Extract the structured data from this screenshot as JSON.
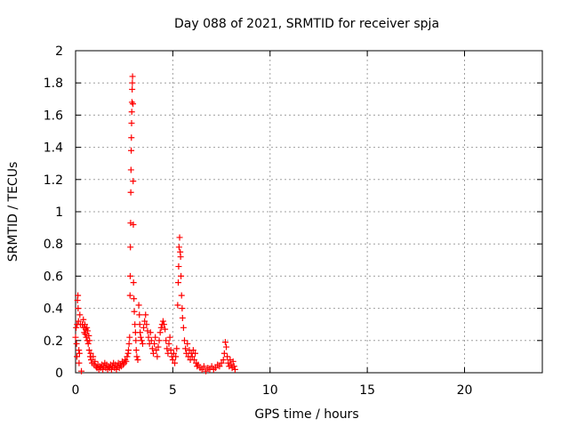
{
  "chart_data": {
    "type": "scatter",
    "title": "Day 088 of 2021, SRMTID for receiver spja",
    "xlabel": "GPS time / hours",
    "ylabel": "SRMTID / TECUs",
    "xlim": [
      0,
      24
    ],
    "ylim": [
      0,
      2
    ],
    "xticks": [
      0,
      5,
      10,
      15,
      20
    ],
    "xtick_labels": [
      "0",
      "5",
      "10",
      "15",
      "20"
    ],
    "yticks": [
      0,
      0.2,
      0.4,
      0.6,
      0.8,
      1,
      1.2,
      1.4,
      1.6,
      1.8,
      2
    ],
    "ytick_labels": [
      "0",
      "0.2",
      "0.4",
      "0.6",
      "0.8",
      "1",
      "1.2",
      "1.4",
      "1.6",
      "1.8",
      "2"
    ],
    "grid": true,
    "marker": "+",
    "colors": {
      "series": "#ff0000",
      "axes": "#000000",
      "grid": "#a0a0a0"
    },
    "series": [
      {
        "points": [
          [
            0.0,
            0.22
          ],
          [
            0.03,
            0.28
          ],
          [
            0.05,
            0.18
          ],
          [
            0.07,
            0.1
          ],
          [
            0.08,
            0.3
          ],
          [
            0.1,
            0.45
          ],
          [
            0.12,
            0.48
          ],
          [
            0.13,
            0.4
          ],
          [
            0.15,
            0.32
          ],
          [
            0.17,
            0.14
          ],
          [
            0.18,
            0.06
          ],
          [
            0.2,
            0.12
          ],
          [
            0.22,
            0.36
          ],
          [
            0.25,
            0.3
          ],
          [
            0.3,
            0.01
          ],
          [
            0.35,
            0.3
          ],
          [
            0.4,
            0.33
          ],
          [
            0.42,
            0.28
          ],
          [
            0.45,
            0.25
          ],
          [
            0.48,
            0.3
          ],
          [
            0.5,
            0.24
          ],
          [
            0.52,
            0.27
          ],
          [
            0.55,
            0.22
          ],
          [
            0.58,
            0.28
          ],
          [
            0.6,
            0.2
          ],
          [
            0.62,
            0.26
          ],
          [
            0.65,
            0.18
          ],
          [
            0.68,
            0.23
          ],
          [
            0.7,
            0.14
          ],
          [
            0.72,
            0.2
          ],
          [
            0.75,
            0.1
          ],
          [
            0.78,
            0.12
          ],
          [
            0.8,
            0.08
          ],
          [
            0.85,
            0.06
          ],
          [
            0.9,
            0.1
          ],
          [
            0.95,
            0.05
          ],
          [
            1.0,
            0.07
          ],
          [
            1.05,
            0.04
          ],
          [
            1.1,
            0.03
          ],
          [
            1.15,
            0.05
          ],
          [
            1.2,
            0.02
          ],
          [
            1.25,
            0.04
          ],
          [
            1.3,
            0.03
          ],
          [
            1.35,
            0.05
          ],
          [
            1.4,
            0.02
          ],
          [
            1.45,
            0.04
          ],
          [
            1.5,
            0.06
          ],
          [
            1.55,
            0.03
          ],
          [
            1.6,
            0.05
          ],
          [
            1.65,
            0.02
          ],
          [
            1.7,
            0.04
          ],
          [
            1.75,
            0.03
          ],
          [
            1.8,
            0.05
          ],
          [
            1.85,
            0.02
          ],
          [
            1.9,
            0.04
          ],
          [
            1.95,
            0.06
          ],
          [
            2.0,
            0.03
          ],
          [
            2.05,
            0.05
          ],
          [
            2.1,
            0.02
          ],
          [
            2.15,
            0.04
          ],
          [
            2.2,
            0.06
          ],
          [
            2.25,
            0.03
          ],
          [
            2.3,
            0.05
          ],
          [
            2.35,
            0.04
          ],
          [
            2.4,
            0.07
          ],
          [
            2.45,
            0.05
          ],
          [
            2.5,
            0.06
          ],
          [
            2.55,
            0.08
          ],
          [
            2.6,
            0.07
          ],
          [
            2.65,
            0.1
          ],
          [
            2.7,
            0.12
          ],
          [
            2.72,
            0.14
          ],
          [
            2.75,
            0.18
          ],
          [
            2.78,
            0.22
          ],
          [
            2.8,
            0.48
          ],
          [
            2.81,
            0.6
          ],
          [
            2.82,
            0.78
          ],
          [
            2.83,
            0.93
          ],
          [
            2.84,
            1.12
          ],
          [
            2.85,
            1.26
          ],
          [
            2.86,
            1.38
          ],
          [
            2.87,
            1.46
          ],
          [
            2.88,
            1.55
          ],
          [
            2.89,
            1.62
          ],
          [
            2.9,
            1.68
          ],
          [
            2.91,
            1.76
          ],
          [
            2.92,
            1.8
          ],
          [
            2.93,
            1.84
          ],
          [
            2.95,
            1.67
          ],
          [
            2.96,
            1.19
          ],
          [
            2.97,
            0.92
          ],
          [
            2.98,
            0.56
          ],
          [
            3.0,
            0.46
          ],
          [
            3.02,
            0.38
          ],
          [
            3.05,
            0.3
          ],
          [
            3.08,
            0.25
          ],
          [
            3.1,
            0.2
          ],
          [
            3.12,
            0.14
          ],
          [
            3.15,
            0.1
          ],
          [
            3.2,
            0.08
          ],
          [
            3.25,
            0.42
          ],
          [
            3.28,
            0.36
          ],
          [
            3.3,
            0.3
          ],
          [
            3.32,
            0.25
          ],
          [
            3.35,
            0.22
          ],
          [
            3.4,
            0.2
          ],
          [
            3.45,
            0.18
          ],
          [
            3.5,
            0.28
          ],
          [
            3.55,
            0.32
          ],
          [
            3.6,
            0.36
          ],
          [
            3.65,
            0.3
          ],
          [
            3.7,
            0.26
          ],
          [
            3.75,
            0.22
          ],
          [
            3.8,
            0.18
          ],
          [
            3.85,
            0.25
          ],
          [
            3.9,
            0.2
          ],
          [
            3.95,
            0.15
          ],
          [
            4.0,
            0.12
          ],
          [
            4.05,
            0.18
          ],
          [
            4.1,
            0.22
          ],
          [
            4.15,
            0.14
          ],
          [
            4.2,
            0.1
          ],
          [
            4.25,
            0.16
          ],
          [
            4.3,
            0.2
          ],
          [
            4.35,
            0.25
          ],
          [
            4.4,
            0.28
          ],
          [
            4.45,
            0.3
          ],
          [
            4.5,
            0.32
          ],
          [
            4.55,
            0.3
          ],
          [
            4.6,
            0.27
          ],
          [
            4.65,
            0.2
          ],
          [
            4.7,
            0.15
          ],
          [
            4.75,
            0.12
          ],
          [
            4.8,
            0.18
          ],
          [
            4.85,
            0.22
          ],
          [
            4.9,
            0.14
          ],
          [
            4.95,
            0.1
          ],
          [
            5.0,
            0.08
          ],
          [
            5.05,
            0.12
          ],
          [
            5.1,
            0.06
          ],
          [
            5.15,
            0.1
          ],
          [
            5.2,
            0.15
          ],
          [
            5.25,
            0.42
          ],
          [
            5.28,
            0.56
          ],
          [
            5.3,
            0.66
          ],
          [
            5.32,
            0.78
          ],
          [
            5.35,
            0.84
          ],
          [
            5.38,
            0.75
          ],
          [
            5.4,
            0.72
          ],
          [
            5.42,
            0.6
          ],
          [
            5.45,
            0.48
          ],
          [
            5.48,
            0.4
          ],
          [
            5.5,
            0.34
          ],
          [
            5.55,
            0.28
          ],
          [
            5.6,
            0.2
          ],
          [
            5.65,
            0.15
          ],
          [
            5.7,
            0.12
          ],
          [
            5.75,
            0.18
          ],
          [
            5.8,
            0.1
          ],
          [
            5.85,
            0.14
          ],
          [
            5.9,
            0.08
          ],
          [
            5.95,
            0.12
          ],
          [
            6.0,
            0.1
          ],
          [
            6.05,
            0.14
          ],
          [
            6.1,
            0.08
          ],
          [
            6.15,
            0.12
          ],
          [
            6.2,
            0.06
          ],
          [
            6.25,
            0.04
          ],
          [
            6.3,
            0.05
          ],
          [
            6.4,
            0.03
          ],
          [
            6.5,
            0.02
          ],
          [
            6.6,
            0.04
          ],
          [
            6.7,
            0.01
          ],
          [
            6.8,
            0.03
          ],
          [
            6.9,
            0.02
          ],
          [
            7.0,
            0.04
          ],
          [
            7.1,
            0.02
          ],
          [
            7.2,
            0.03
          ],
          [
            7.3,
            0.05
          ],
          [
            7.4,
            0.04
          ],
          [
            7.5,
            0.06
          ],
          [
            7.6,
            0.08
          ],
          [
            7.65,
            0.12
          ],
          [
            7.7,
            0.19
          ],
          [
            7.75,
            0.16
          ],
          [
            7.8,
            0.1
          ],
          [
            7.85,
            0.06
          ],
          [
            7.9,
            0.04
          ],
          [
            7.95,
            0.08
          ],
          [
            8.0,
            0.05
          ],
          [
            8.05,
            0.03
          ],
          [
            8.1,
            0.07
          ],
          [
            8.15,
            0.04
          ],
          [
            8.2,
            0.02
          ]
        ]
      }
    ]
  }
}
